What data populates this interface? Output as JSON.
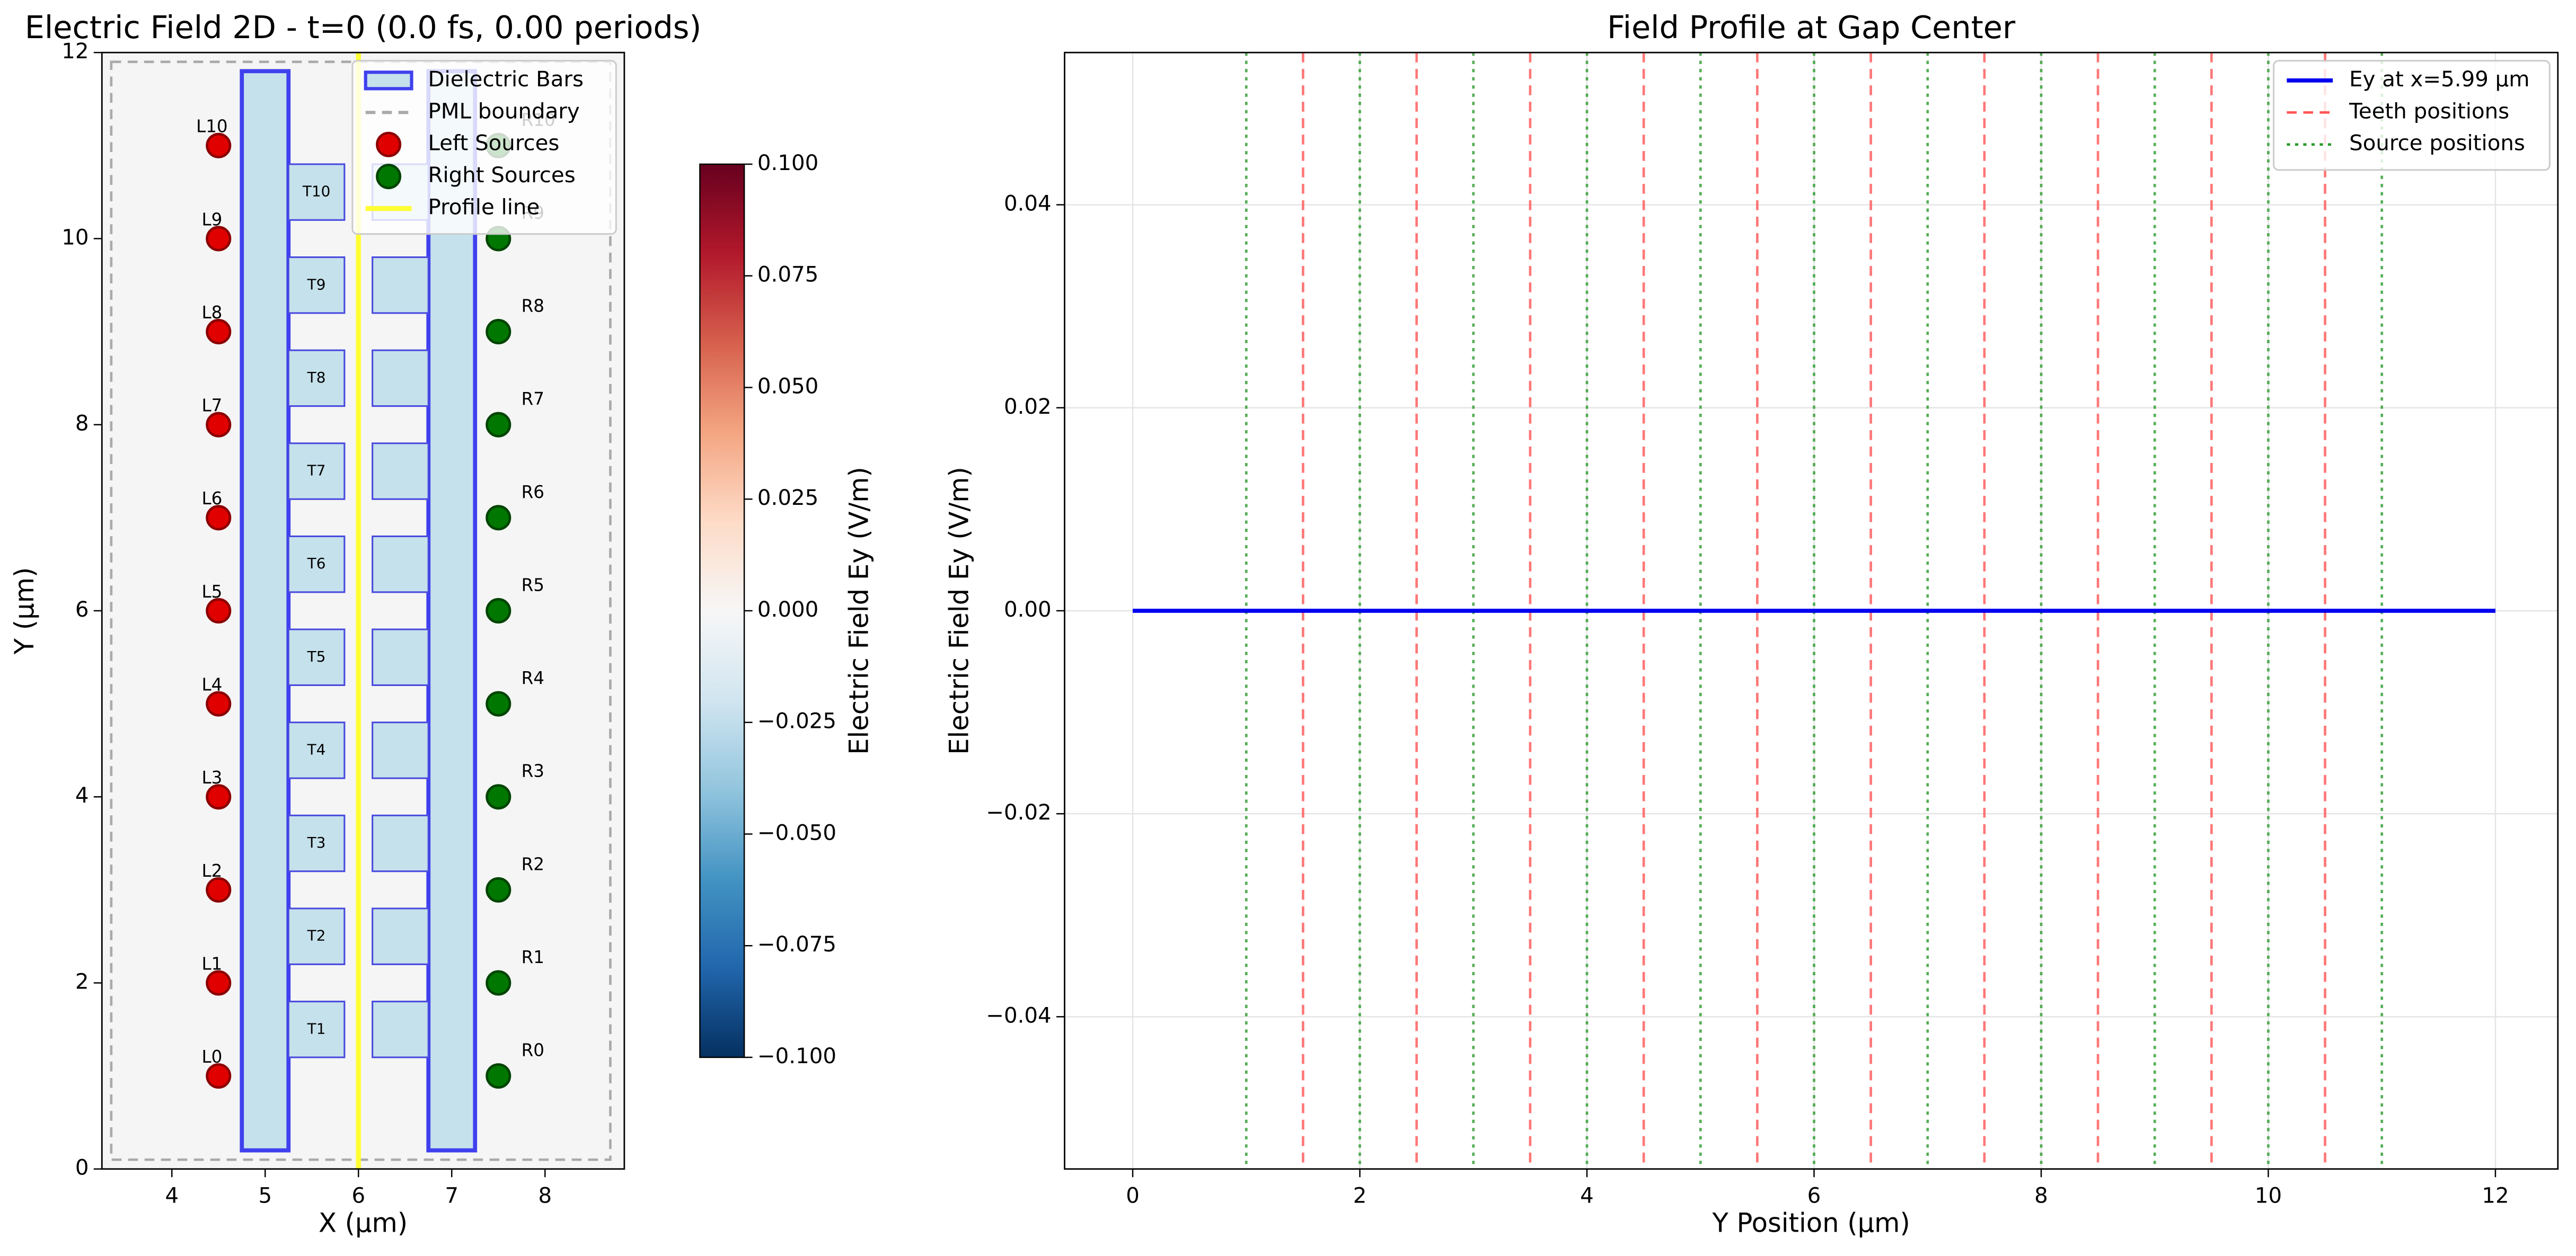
{
  "chart_data": [
    {
      "type": "field_map",
      "title": "Electric Field 2D - t=0 (0.0 fs, 0.00 periods)",
      "xlabel": "X (µm)",
      "ylabel": "Y (µm)",
      "xlim": [
        3.25,
        8.85
      ],
      "ylim": [
        0,
        12
      ],
      "xticks": [
        4,
        5,
        6,
        7,
        8
      ],
      "yticks": [
        0,
        2,
        4,
        6,
        8,
        10,
        12
      ],
      "legend": "upper right",
      "series": [
        {
          "name": "Dielectric Bars",
          "color": "#4040ee",
          "facecolor": "#c5e1ec",
          "x0": [
            4.75,
            6.75
          ],
          "x1": [
            5.25,
            7.25
          ],
          "y0": [
            0.2,
            0.2
          ],
          "y1": [
            11.8,
            11.8
          ]
        },
        {
          "name": "PML boundary",
          "color": "#aaaaaa",
          "linestyle": "dashed",
          "x0": [
            3.35
          ],
          "x1": [
            8.7
          ],
          "y0": [
            0.1
          ],
          "y1": [
            11.9
          ]
        },
        {
          "name": "Left Sources",
          "color": "#e00000",
          "edgecolor": "#8b0000",
          "marker": "o",
          "x": [
            4.5,
            4.5,
            4.5,
            4.5,
            4.5,
            4.5,
            4.5,
            4.5,
            4.5,
            4.5,
            4.5
          ],
          "y": [
            1,
            2,
            3,
            4,
            5,
            6,
            7,
            8,
            9,
            10,
            11
          ],
          "labels": [
            "L0",
            "L1",
            "L2",
            "L3",
            "L4",
            "L5",
            "L6",
            "L7",
            "L8",
            "L9",
            "L10"
          ]
        },
        {
          "name": "Right Sources",
          "color": "#007700",
          "edgecolor": "#004400",
          "marker": "o",
          "x": [
            7.5,
            7.5,
            7.5,
            7.5,
            7.5,
            7.5,
            7.5,
            7.5,
            7.5,
            7.5,
            7.5
          ],
          "y": [
            1,
            2,
            3,
            4,
            5,
            6,
            7,
            8,
            9,
            10,
            11
          ],
          "labels": [
            "R0",
            "R1",
            "R2",
            "R3",
            "R4",
            "R5",
            "R6",
            "R7",
            "R8",
            "R9",
            "R10"
          ]
        },
        {
          "name": "Profile line",
          "color": "#ffff33",
          "x": [
            6,
            6
          ],
          "y": [
            0,
            12
          ]
        }
      ],
      "teeth": [
        {
          "color": "#4a4adf",
          "facecolor": "#c5e1ec",
          "x0": 5.25,
          "x1": 5.85,
          "y0": [
            1.2,
            2.2,
            3.2,
            4.2,
            5.2,
            6.2,
            7.2,
            8.2,
            9.2,
            10.2
          ],
          "y1": [
            1.8,
            2.8,
            3.8,
            4.8,
            5.8,
            6.8,
            7.8,
            8.8,
            9.8,
            10.8
          ],
          "labels": [
            "T1",
            "T2",
            "T3",
            "T4",
            "T5",
            "T6",
            "T7",
            "T8",
            "T9",
            "T10"
          ]
        },
        {
          "color": "#4a4adf",
          "facecolor": "#c5e1ec",
          "x0": 6.15,
          "x1": 6.75,
          "y0": [
            1.2,
            2.2,
            3.2,
            4.2,
            5.2,
            6.2,
            7.2,
            8.2,
            9.2,
            10.2
          ],
          "y1": [
            1.8,
            2.8,
            3.8,
            4.8,
            5.8,
            6.8,
            7.8,
            8.8,
            9.8,
            10.8
          ]
        }
      ],
      "colorbar": {
        "label": "Electric Field Ey (V/m)",
        "lim": [
          -0.1,
          0.1
        ],
        "colormap": "RdBu_r",
        "ticks": [
          {
            "value": -0.1,
            "label": "−0.100"
          },
          {
            "value": -0.075,
            "label": "−0.075"
          },
          {
            "value": -0.05,
            "label": "−0.050"
          },
          {
            "value": -0.025,
            "label": "−0.025"
          },
          {
            "value": 0,
            "label": "0.000"
          },
          {
            "value": 0.025,
            "label": "0.025"
          },
          {
            "value": 0.05,
            "label": "0.050"
          },
          {
            "value": 0.075,
            "label": "0.075"
          },
          {
            "value": 0.1,
            "label": "0.100"
          }
        ]
      }
    },
    {
      "type": "line",
      "title": "Field Profile at Gap Center",
      "xlabel": "Y Position (µm)",
      "ylabel": "Electric Field Ey (V/m)",
      "x": [
        0,
        12
      ],
      "series": [
        {
          "name": "Ey at x=5.99 µm",
          "color": "#0000ee",
          "values": [
            0,
            0
          ]
        }
      ],
      "vlines": [
        {
          "name": "Teeth positions",
          "color": "#ff5555",
          "linestyle": "dashed",
          "x": [
            1.5,
            2.5,
            3.5,
            4.5,
            5.5,
            6.5,
            7.5,
            8.5,
            9.5,
            10.5
          ]
        },
        {
          "name": "Source positions",
          "color": "#2a9a2a",
          "linestyle": "dotted",
          "x": [
            1,
            2,
            3,
            4,
            5,
            6,
            7,
            8,
            9,
            10,
            11
          ]
        }
      ],
      "xlim": [
        -0.6,
        12.55
      ],
      "ylim": [
        -0.055,
        0.055
      ],
      "xticks": [
        0,
        2,
        4,
        6,
        8,
        10,
        12
      ],
      "yticks": [
        {
          "value": -0.04,
          "label": "−0.04"
        },
        {
          "value": -0.02,
          "label": "−0.02"
        },
        {
          "value": 0,
          "label": "0.00"
        },
        0.02,
        0.04
      ],
      "grid": true,
      "legend": "upper right"
    }
  ]
}
